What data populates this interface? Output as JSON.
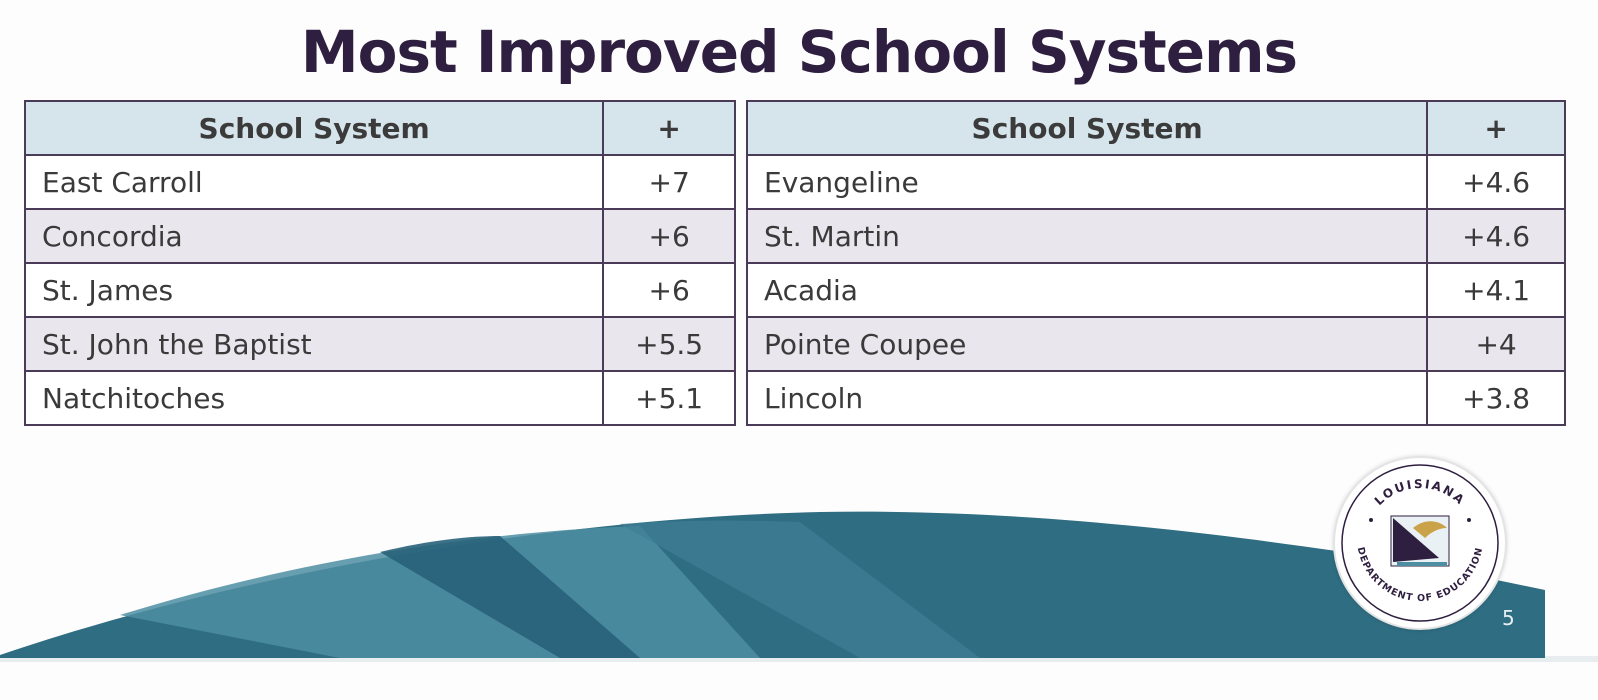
{
  "slide": {
    "title": "Most Improved School Systems",
    "page_number": "5"
  },
  "tables": [
    {
      "headers": {
        "system": "School System",
        "change": "+"
      },
      "rows": [
        {
          "system": "East Carroll",
          "change": "+7"
        },
        {
          "system": "Concordia",
          "change": "+6"
        },
        {
          "system": "St. James",
          "change": "+6"
        },
        {
          "system": "St. John the Baptist",
          "change": "+5.5"
        },
        {
          "system": "Natchitoches",
          "change": "+5.1"
        }
      ]
    },
    {
      "headers": {
        "system": "School System",
        "change": "+"
      },
      "rows": [
        {
          "system": "Evangeline",
          "change": "+4.6"
        },
        {
          "system": "St. Martin",
          "change": "+4.6"
        },
        {
          "system": "Acadia",
          "change": "+4.1"
        },
        {
          "system": "Pointe Coupee",
          "change": "+4"
        },
        {
          "system": "Lincoln",
          "change": "+3.8"
        }
      ]
    }
  ],
  "logo": {
    "icon": "louisiana-department-of-education-seal-icon",
    "top_text": "LOUISIANA",
    "bottom_text": "DEPARTMENT OF EDUCATION"
  },
  "colors": {
    "title": "#2e1e3f",
    "header_bg": "#d6e5ec",
    "alt_row_bg": "#eae6ee",
    "border": "#4a3c58",
    "wave_dark": "#2f6d82",
    "wave_light": "#4d8ea2"
  }
}
